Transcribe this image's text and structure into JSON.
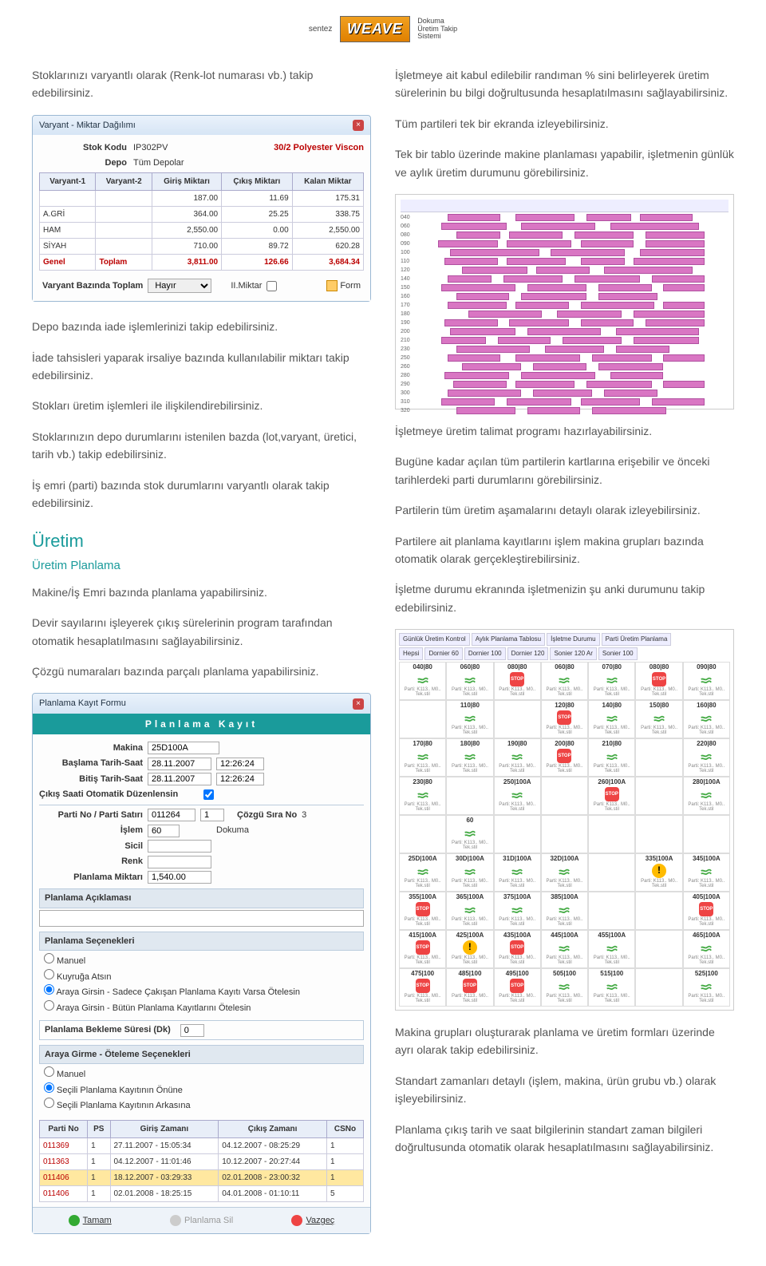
{
  "header": {
    "brand": "sentez",
    "product_l1": "Dokuma",
    "product_l2": "Üretim Takip",
    "product_l3": "Sistemi",
    "logo": "WEAVE"
  },
  "leftIntro": "Stoklarınızı varyantlı olarak (Renk-lot numarası vb.) takip edebilirsiniz.",
  "variantWin": {
    "title": "Varyant - Miktar Dağılımı",
    "stokKoduLabel": "Stok Kodu",
    "stokKodu": "IP302PV",
    "stokDesc": "30/2 Polyester Viscon",
    "depoLabel": "Depo",
    "depoVal": "Tüm Depolar",
    "cols": [
      "Varyant-1",
      "Varyant-2",
      "Giriş Miktarı",
      "Çıkış Miktarı",
      "Kalan Miktar"
    ],
    "rows": [
      [
        "",
        "",
        "187.00",
        "11.69",
        "175.31"
      ],
      [
        "A.GRİ",
        "",
        "364.00",
        "25.25",
        "338.75"
      ],
      [
        "HAM",
        "",
        "2,550.00",
        "0.00",
        "2,550.00"
      ],
      [
        "SİYAH",
        "",
        "710.00",
        "89.72",
        "620.28"
      ]
    ],
    "totalRow": [
      "Genel",
      "Toplam",
      "3,811.00",
      "126.66",
      "3,684.34"
    ],
    "footLabel": "Varyant Bazında Toplam",
    "footVal": "Hayır",
    "footChk": "II.Miktar",
    "footBtn": "Form"
  },
  "leftParas": [
    "Depo bazında iade işlemlerinizi takip edebilirsiniz.",
    "İade tahsisleri yaparak irsaliye bazında kullanılabilir miktarı takip edebilirsiniz.",
    "Stokları üretim işlemleri ile ilişkilendirebilirsiniz.",
    "Stoklarınızın depo durumlarını istenilen bazda (lot,varyant, üretici, tarih vb.) takip edebilirsiniz.",
    "İş emri (parti) bazında stok durumlarını varyantlı olarak takip edebilirsiniz."
  ],
  "uretimHdr": "Üretim",
  "uretimSub": "Üretim Planlama",
  "uretimParas": [
    "Makine/İş Emri bazında planlama yapabilirsiniz.",
    "Devir sayılarını işleyerek çıkış sürelerinin program tarafından otomatik hesaplatılmasını sağlayabilirsiniz.",
    "Çözgü numaraları bazında parçalı planlama yapabilirsiniz."
  ],
  "planWin": {
    "title": "Planlama Kayıt Formu",
    "banner": "Planlama Kayıt",
    "fields": {
      "makina": {
        "l": "Makina",
        "v": "25D100A"
      },
      "bas": {
        "l": "Başlama Tarih-Saat",
        "v1": "28.11.2007",
        "v2": "12:26:24"
      },
      "bit": {
        "l": "Bitiş Tarih-Saat",
        "v1": "28.11.2007",
        "v2": "12:26:24"
      },
      "cikis": {
        "l": "Çıkış Saati Otomatik Düzenlensin"
      },
      "parti": {
        "l": "Parti No / Parti Satırı",
        "v1": "011264",
        "v2": "1",
        "sira_l": "Çözgü Sıra No",
        "sira_v": "3"
      },
      "islem": {
        "l": "İşlem",
        "v": "60",
        "desc": "Dokuma"
      },
      "sicil": {
        "l": "Sicil",
        "v": ""
      },
      "renk": {
        "l": "Renk",
        "v": ""
      },
      "miktar": {
        "l": "Planlama Miktarı",
        "v": "1,540.00"
      }
    },
    "aciklama": "Planlama Açıklaması",
    "secenek": "Planlama Seçenekleri",
    "opts1": [
      "Manuel",
      "Kuyruğa Atsın",
      "Araya Girsin - Sadece Çakışan Planlama Kayıtı Varsa Ötelesin",
      "Araya Girsin - Bütün Planlama Kayıtlarını Ötelesin"
    ],
    "bekleme": {
      "l": "Planlama Bekleme Süresi (Dk)",
      "v": "0"
    },
    "araya": "Araya Girme - Öteleme Seçenekleri",
    "opts2": [
      "Manuel",
      "Seçili Planlama Kayıtının Önüne",
      "Seçili Planlama Kayıtının Arkasına"
    ],
    "gridCols": [
      "Parti No",
      "PS",
      "Giriş Zamanı",
      "Çıkış Zamanı",
      "CSNo"
    ],
    "gridRows": [
      [
        "011369",
        "1",
        "27.11.2007 - 15:05:34",
        "04.12.2007 - 08:25:29",
        "1",
        false
      ],
      [
        "011363",
        "1",
        "04.12.2007 - 11:01:46",
        "10.12.2007 - 20:27:44",
        "1",
        false
      ],
      [
        "011406",
        "1",
        "18.12.2007 - 03:29:33",
        "02.01.2008 - 23:00:32",
        "1",
        true
      ],
      [
        "011406",
        "1",
        "02.01.2008 - 18:25:15",
        "04.01.2008 - 01:10:11",
        "5",
        false
      ]
    ],
    "btns": {
      "ok": "Tamam",
      "del": "Planlama Sil",
      "cancel": "Vazgeç"
    }
  },
  "rightParas1": [
    "İşletmeye ait kabul edilebilir randıman % sini belirleyerek üretim sürelerinin bu bilgi doğrultusunda hesaplatılmasını sağlayabilirsiniz.",
    "Tüm partileri tek bir ekranda izleyebilirsiniz.",
    "Tek bir tablo üzerinde makine planlaması yapabilir, işletmenin günlük ve aylık üretim durumunu görebilirsiniz."
  ],
  "gantt": {
    "barColor": "#d976c3",
    "rows": [
      {
        "l": "040",
        "b": [
          [
            5,
            18
          ],
          [
            28,
            20
          ],
          [
            52,
            15
          ],
          [
            70,
            18
          ]
        ]
      },
      {
        "l": "060",
        "b": [
          [
            3,
            22
          ],
          [
            30,
            25
          ],
          [
            60,
            30
          ]
        ]
      },
      {
        "l": "080",
        "b": [
          [
            8,
            15
          ],
          [
            26,
            18
          ],
          [
            48,
            20
          ],
          [
            72,
            20
          ]
        ]
      },
      {
        "l": "090",
        "b": [
          [
            2,
            20
          ],
          [
            25,
            22
          ],
          [
            50,
            18
          ],
          [
            72,
            20
          ]
        ]
      },
      {
        "l": "100",
        "b": [
          [
            6,
            30
          ],
          [
            40,
            25
          ],
          [
            70,
            22
          ]
        ]
      },
      {
        "l": "110",
        "b": [
          [
            4,
            18
          ],
          [
            25,
            20
          ],
          [
            50,
            15
          ],
          [
            68,
            24
          ]
        ]
      },
      {
        "l": "120",
        "b": [
          [
            10,
            22
          ],
          [
            35,
            18
          ],
          [
            58,
            30
          ]
        ]
      },
      {
        "l": "140",
        "b": [
          [
            5,
            15
          ],
          [
            24,
            20
          ],
          [
            48,
            22
          ],
          [
            74,
            18
          ]
        ]
      },
      {
        "l": "150",
        "b": [
          [
            3,
            25
          ],
          [
            32,
            20
          ],
          [
            56,
            18
          ],
          [
            78,
            14
          ]
        ]
      },
      {
        "l": "160",
        "b": [
          [
            8,
            18
          ],
          [
            30,
            22
          ],
          [
            56,
            20
          ]
        ]
      },
      {
        "l": "170",
        "b": [
          [
            5,
            20
          ],
          [
            28,
            18
          ],
          [
            50,
            25
          ],
          [
            78,
            14
          ]
        ]
      },
      {
        "l": "180",
        "b": [
          [
            12,
            25
          ],
          [
            42,
            22
          ],
          [
            68,
            24
          ]
        ]
      },
      {
        "l": "190",
        "b": [
          [
            4,
            18
          ],
          [
            26,
            20
          ],
          [
            50,
            18
          ],
          [
            72,
            20
          ]
        ]
      },
      {
        "l": "200",
        "b": [
          [
            6,
            22
          ],
          [
            32,
            25
          ],
          [
            62,
            28
          ]
        ]
      },
      {
        "l": "210",
        "b": [
          [
            3,
            15
          ],
          [
            22,
            18
          ],
          [
            44,
            20
          ],
          [
            68,
            22
          ]
        ]
      },
      {
        "l": "230",
        "b": [
          [
            8,
            25
          ],
          [
            38,
            20
          ],
          [
            62,
            18
          ]
        ]
      },
      {
        "l": "250",
        "b": [
          [
            5,
            18
          ],
          [
            28,
            22
          ],
          [
            54,
            20
          ],
          [
            78,
            14
          ]
        ]
      },
      {
        "l": "260",
        "b": [
          [
            10,
            20
          ],
          [
            34,
            18
          ],
          [
            56,
            22
          ]
        ]
      },
      {
        "l": "280",
        "b": [
          [
            4,
            22
          ],
          [
            30,
            25
          ],
          [
            60,
            18
          ]
        ]
      },
      {
        "l": "290",
        "b": [
          [
            7,
            18
          ],
          [
            28,
            20
          ],
          [
            52,
            22
          ],
          [
            78,
            14
          ]
        ]
      },
      {
        "l": "300",
        "b": [
          [
            5,
            25
          ],
          [
            34,
            20
          ],
          [
            58,
            18
          ]
        ]
      },
      {
        "l": "310",
        "b": [
          [
            3,
            18
          ],
          [
            25,
            22
          ],
          [
            50,
            20
          ],
          [
            74,
            18
          ]
        ]
      },
      {
        "l": "320",
        "b": [
          [
            8,
            20
          ],
          [
            32,
            18
          ],
          [
            54,
            25
          ]
        ]
      }
    ]
  },
  "rightParas2": [
    "İşletmeye üretim talimat programı hazırlayabilirsiniz.",
    "Bugüne kadar açılan tüm partilerin kartlarına erişebilir ve önceki tarihlerdeki parti durumlarını görebilirsiniz.",
    "Partilerin tüm üretim aşamalarını detaylı olarak izleyebilirsiniz.",
    "Partilere ait planlama kayıtlarını işlem makina grupları bazında otomatik olarak gerçekleştirebilirsiniz.",
    "İşletme durumu ekranında işletmenizin şu anki durumunu takip edebilirsiniz."
  ],
  "status": {
    "tabs": [
      "Günlük Üretim Kontrol",
      "Aylık Planlama Tablosu",
      "İşletme Durumu",
      "Parti Üretim Planlama"
    ],
    "subtabs": [
      "Hepsi",
      "Dornier 60",
      "Dornier 100",
      "Dornier 120",
      "Sonier 120 Ar",
      "Sonier 100"
    ],
    "cells": [
      [
        "040|80",
        "060|80",
        "080|80",
        "060|80",
        "070|80",
        "080|80",
        "090|80"
      ],
      [
        "",
        "110|80",
        "",
        "120|80",
        "140|80",
        "150|80",
        "160|80"
      ],
      [
        "170|80",
        "180|80",
        "190|80",
        "200|80",
        "210|80",
        "",
        "220|80"
      ],
      [
        "230|80",
        "",
        "250|100A",
        "",
        "260|100A",
        "",
        "280|100A"
      ],
      [
        "",
        "60",
        "",
        "",
        "",
        "",
        ""
      ],
      [
        "25D|100A",
        "30D|100A",
        "31D|100A",
        "32D|100A",
        "",
        "335|100A",
        "345|100A"
      ],
      [
        "355|100A",
        "365|100A",
        "375|100A",
        "385|100A",
        "",
        "",
        "405|100A"
      ],
      [
        "415|100A",
        "425|100A",
        "435|100A",
        "445|100A",
        "455|100A",
        "",
        "465|100A"
      ],
      [
        "475|100",
        "485|100",
        "495|100",
        "505|100",
        "515|100",
        "",
        "525|100"
      ]
    ],
    "states": [
      [
        "r",
        "r",
        "s",
        "r",
        "r",
        "s",
        "r"
      ],
      [
        "",
        "r",
        "",
        "s",
        "r",
        "r",
        "r"
      ],
      [
        "r",
        "r",
        "r",
        "s",
        "r",
        "",
        "r"
      ],
      [
        "r",
        "",
        "r",
        "",
        "s",
        "",
        "r"
      ],
      [
        "",
        "r",
        "",
        "",
        "",
        "",
        ""
      ],
      [
        "r",
        "r",
        "r",
        "r",
        "",
        "w",
        "r"
      ],
      [
        "s",
        "r",
        "r",
        "r",
        "",
        "",
        "s"
      ],
      [
        "s",
        "w",
        "s",
        "r",
        "r",
        "",
        "r"
      ],
      [
        "s",
        "s",
        "s",
        "r",
        "r",
        "",
        "r"
      ]
    ],
    "iconColors": {
      "r": "#6c6",
      "s": "#e44",
      "w": "#fb0"
    }
  },
  "rightParas3": [
    "Makina grupları oluşturarak planlama ve üretim formları üzerinde ayrı olarak takip edebilirsiniz.",
    "Standart zamanları detaylı (işlem, makina, ürün grubu vb.) olarak işleyebilirsiniz.",
    "Planlama çıkış tarih ve saat bilgilerinin standart zaman bilgileri doğrultusunda otomatik olarak hesaplatılmasını sağlayabilirsiniz."
  ]
}
